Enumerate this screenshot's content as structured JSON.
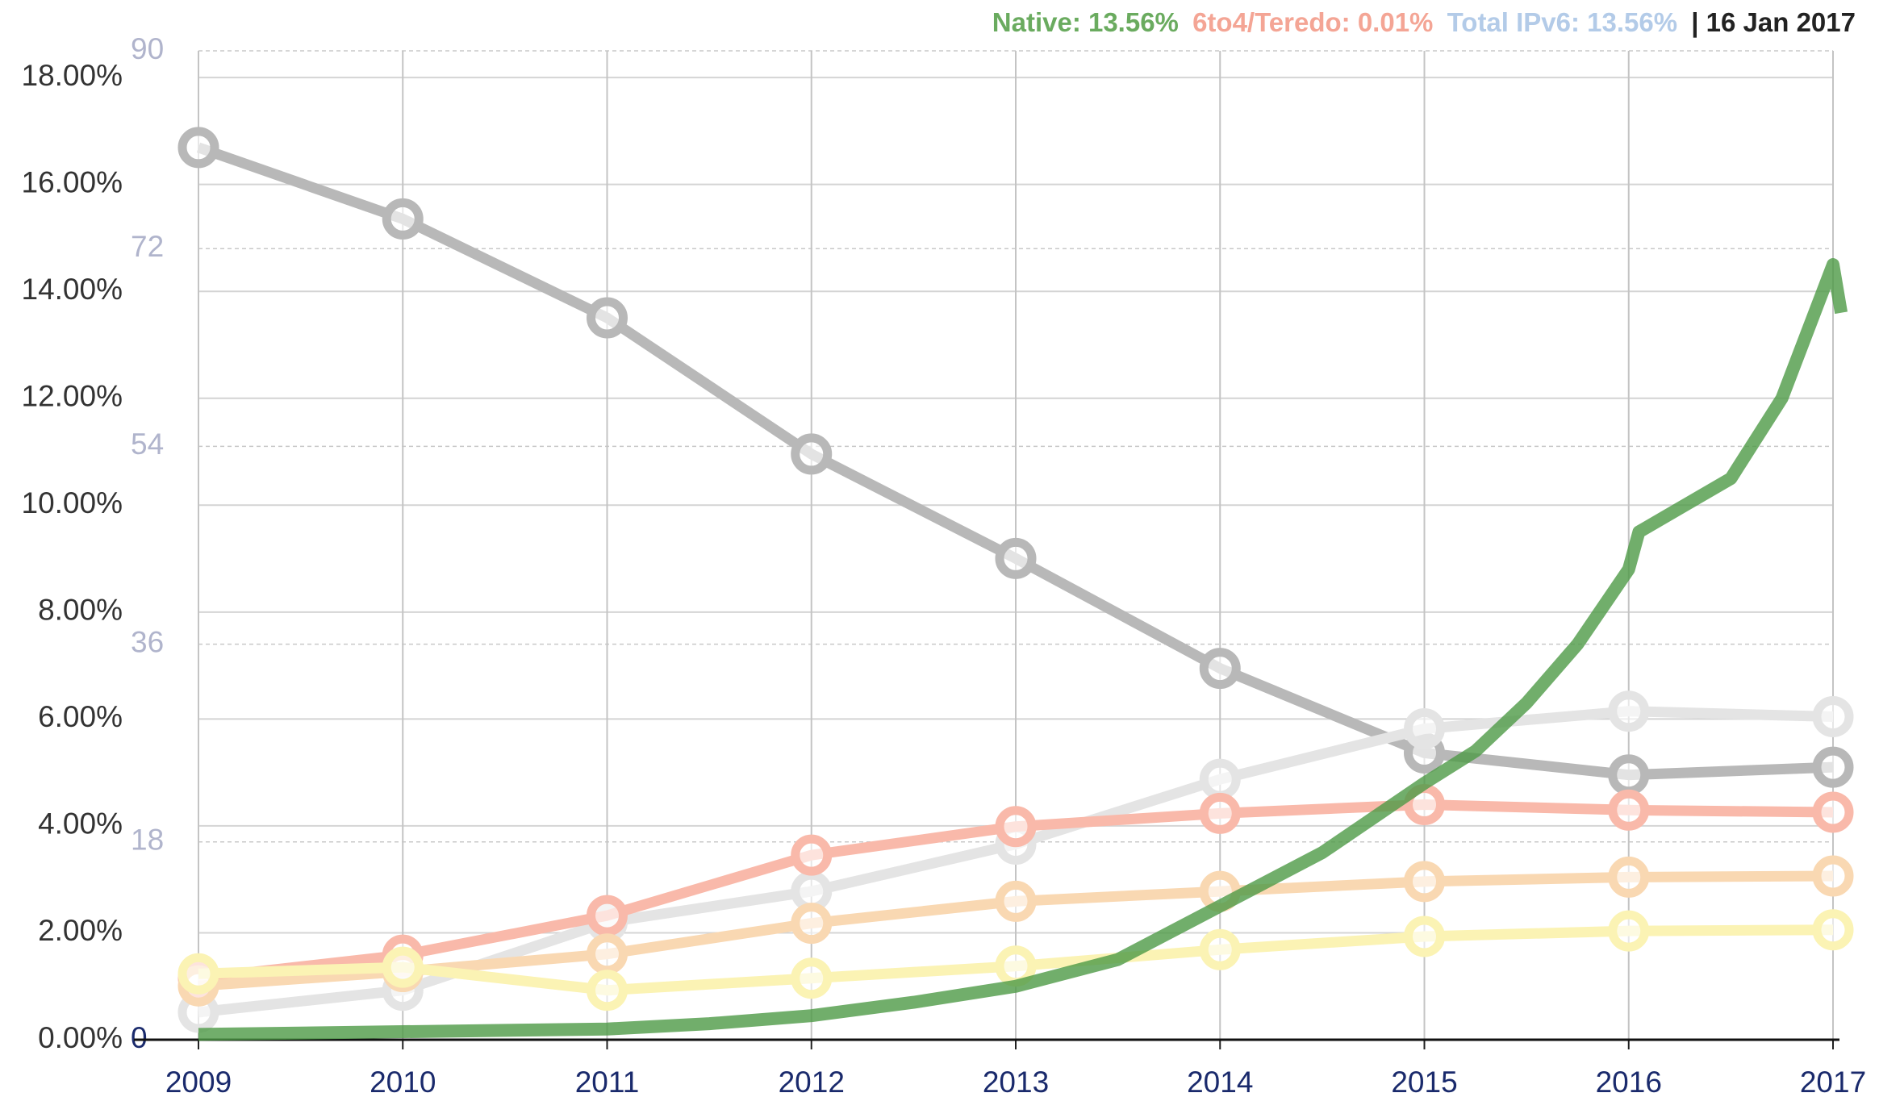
{
  "chart_data": {
    "type": "line",
    "header": {
      "native": {
        "text": "Native: 13.56%",
        "color": "#6aab5f"
      },
      "teredo": {
        "text": "6to4/Teredo: 0.01%",
        "color": "#f4a595"
      },
      "total": {
        "text": "Total IPv6: 13.56%",
        "color": "#b3cbe8"
      },
      "date": {
        "text": "| 16 Jan 2017",
        "color": "#222222"
      }
    },
    "x": [
      2009,
      2010,
      2011,
      2012,
      2013,
      2014,
      2015,
      2016,
      2017
    ],
    "xlim": [
      2009,
      2017
    ],
    "xticks": [
      2009,
      2010,
      2011,
      2012,
      2013,
      2014,
      2015,
      2016,
      2017
    ],
    "ylim": [
      0,
      18.5
    ],
    "yticks": [
      {
        "value": 0,
        "label": "0.00%"
      },
      {
        "value": 2,
        "label": "2.00%"
      },
      {
        "value": 4,
        "label": "4.00%"
      },
      {
        "value": 6,
        "label": "6.00%"
      },
      {
        "value": 8,
        "label": "8.00%"
      },
      {
        "value": 10,
        "label": "10.00%"
      },
      {
        "value": 12,
        "label": "12.00%"
      },
      {
        "value": 14,
        "label": "14.00%"
      },
      {
        "value": 16,
        "label": "16.00%"
      },
      {
        "value": 18,
        "label": "18.00%"
      }
    ],
    "y2lim": [
      0,
      90
    ],
    "y2ticks": [
      0,
      18,
      36,
      54,
      72,
      90
    ],
    "grid": true,
    "series": [
      {
        "color": "#b8b8b8",
        "axis": "y2",
        "values": [
          81.2,
          74.7,
          65.7,
          53.3,
          43.8,
          33.8,
          26.1,
          24.1,
          24.8
        ]
      },
      {
        "color": "#e4e4e4",
        "axis": "y2",
        "values": [
          2.5,
          4.5,
          10.7,
          13.5,
          17.8,
          23.7,
          28.3,
          29.9,
          29.4
        ]
      },
      {
        "color": "#f9b9aa",
        "axis": "y2",
        "values": [
          5.6,
          7.7,
          11.3,
          16.8,
          19.4,
          20.6,
          21.4,
          20.9,
          20.7
        ]
      },
      {
        "color": "#f9d8b2",
        "axis": "y2",
        "values": [
          4.9,
          6.2,
          7.8,
          10.6,
          12.6,
          13.5,
          14.4,
          14.8,
          14.9
        ]
      },
      {
        "color": "#fbf3b4",
        "axis": "y2",
        "values": [
          6.0,
          6.6,
          4.5,
          5.6,
          6.7,
          8.2,
          9.4,
          9.9,
          10.0
        ]
      }
    ],
    "native": {
      "color": "#4e9a46",
      "x": [
        2009,
        2010,
        2011,
        2011.5,
        2012,
        2012.5,
        2013,
        2013.5,
        2014,
        2014.5,
        2015,
        2015.25,
        2015.5,
        2015.75,
        2016,
        2016.05,
        2016.5,
        2016.75,
        2017,
        2017.04
      ],
      "values": [
        0.1,
        0.15,
        0.2,
        0.3,
        0.45,
        0.7,
        1.0,
        1.5,
        2.5,
        3.5,
        4.8,
        5.4,
        6.3,
        7.4,
        8.8,
        9.5,
        10.5,
        12.0,
        14.5,
        13.6
      ]
    }
  }
}
